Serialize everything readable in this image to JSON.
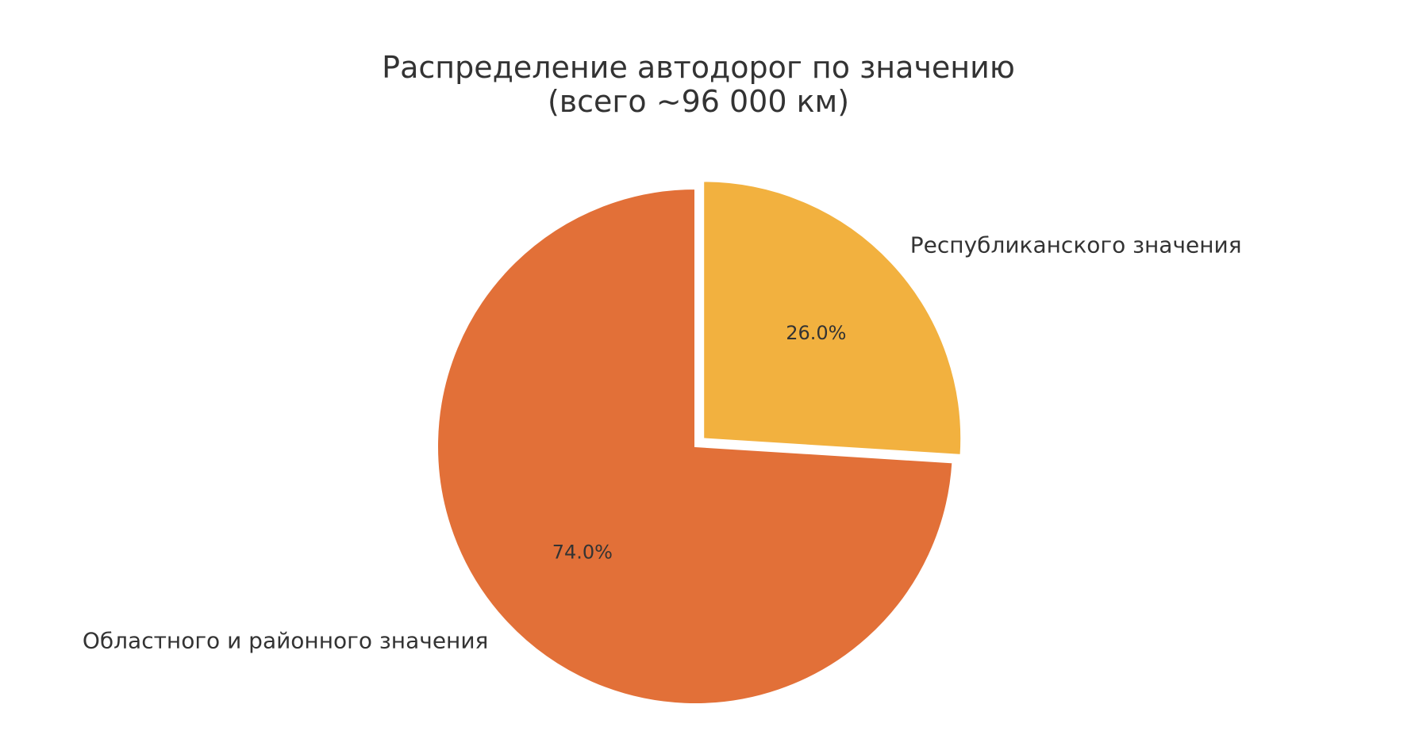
{
  "chart_data": {
    "type": "pie",
    "title": [
      "Распределение автодорог по значению",
      "(всего ~96 000 км)"
    ],
    "slices": [
      {
        "label": "Республиканского значения",
        "value": 26.0,
        "pct_label": "26.0%",
        "color": "#F2B13F",
        "exploded": true
      },
      {
        "label": "Областного и районного значения",
        "value": 74.0,
        "pct_label": "74.0%",
        "color": "#E27038",
        "exploded": false
      }
    ],
    "start_angle": "90 (top), clockwise",
    "legend": "none"
  }
}
